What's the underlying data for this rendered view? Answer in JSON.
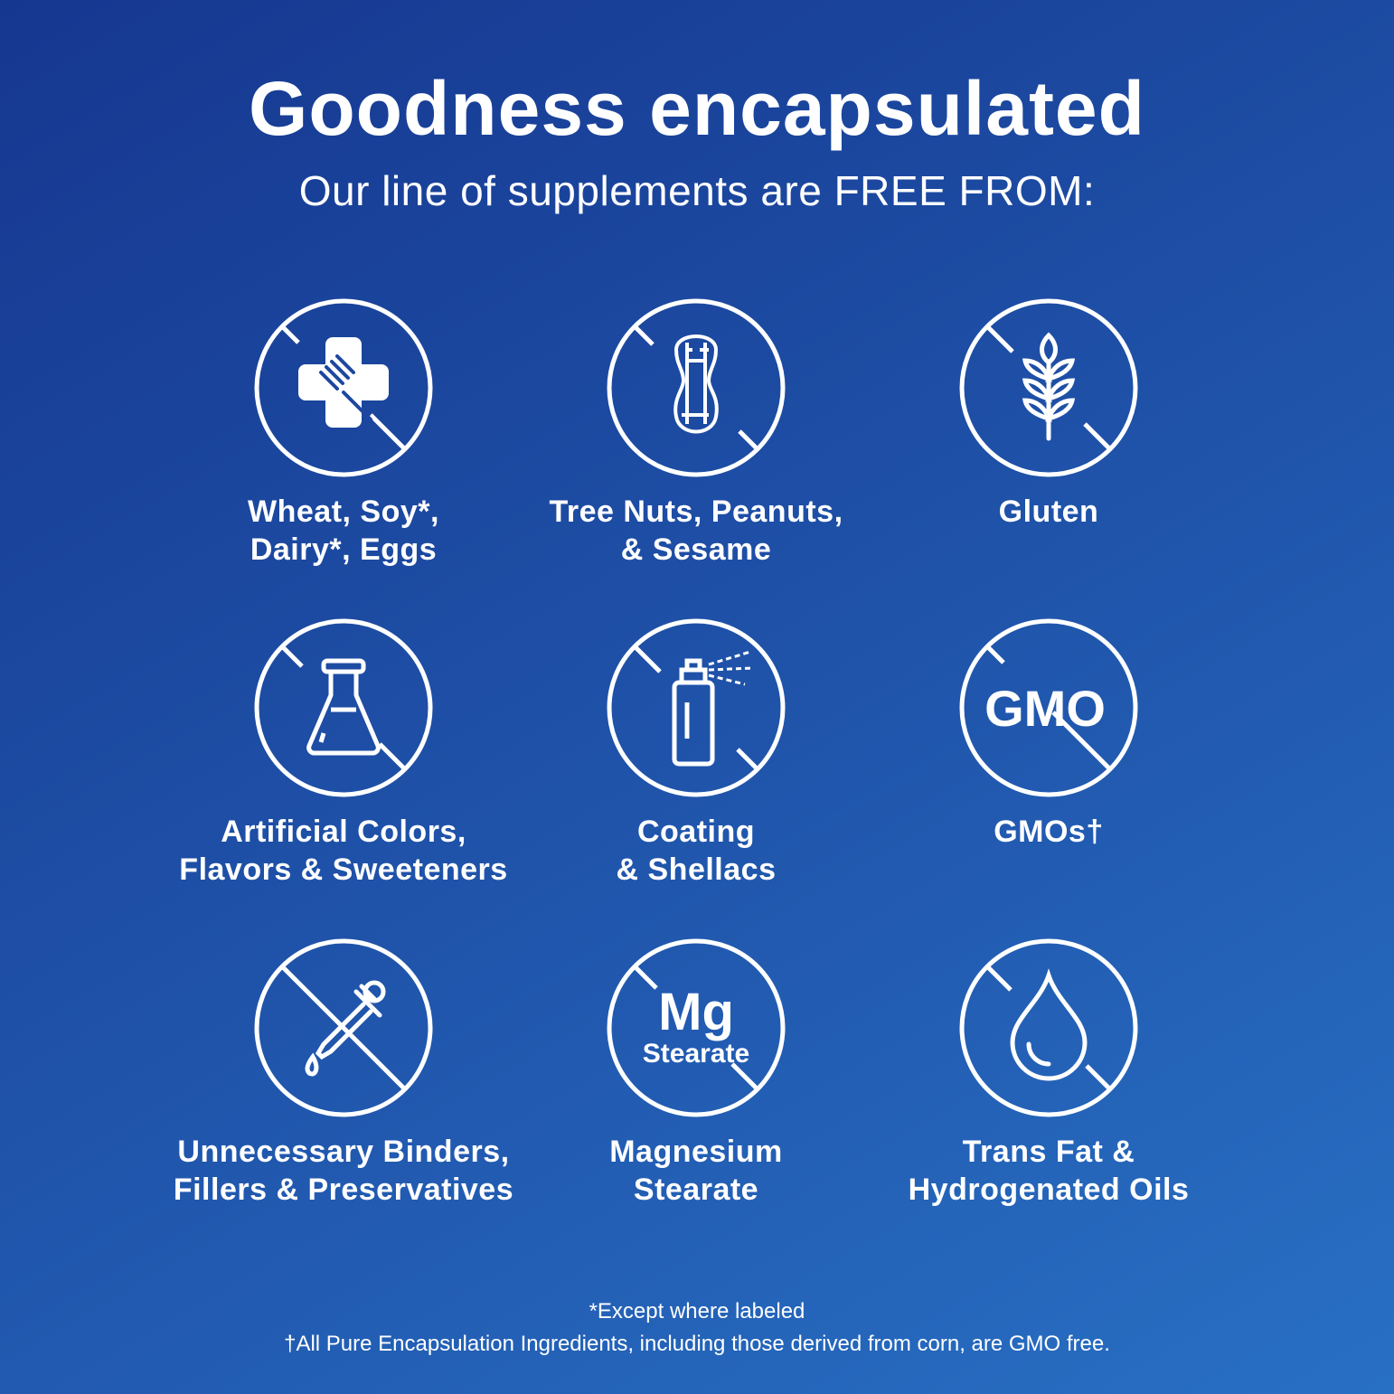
{
  "header": {
    "title": "Goodness encapsulated",
    "subtitle": "Our line of supplements are FREE FROM:"
  },
  "items": [
    {
      "icon": "no-allergen-fork-icon",
      "label": "Wheat, Soy*,\nDairy*, Eggs"
    },
    {
      "icon": "no-peanut-icon",
      "label": "Tree Nuts, Peanuts,\n& Sesame"
    },
    {
      "icon": "no-wheat-icon",
      "label": "Gluten"
    },
    {
      "icon": "no-flask-icon",
      "label": "Artificial Colors,\nFlavors & Sweeteners"
    },
    {
      "icon": "no-spray-can-icon",
      "label": "Coating\n& Shellacs"
    },
    {
      "icon": "no-gmo-icon",
      "label": "GMOs†",
      "icon_text": "GMO"
    },
    {
      "icon": "no-dropper-icon",
      "label": "Unnecessary Binders,\nFillers & Preservatives"
    },
    {
      "icon": "no-mg-stearate-icon",
      "label": "Magnesium\nStearate",
      "icon_text": "Mg",
      "icon_subtext": "Stearate"
    },
    {
      "icon": "no-oil-drop-icon",
      "label": "Trans Fat &\nHydrogenated Oils"
    }
  ],
  "footnotes": {
    "asterisk": "*Except where labeled",
    "dagger": "†All Pure Encapsulation Ingredients, including those derived from corn, are GMO free."
  },
  "colors": {
    "background_top": "#163790",
    "background_bottom": "#2870c4",
    "foreground": "#ffffff"
  }
}
